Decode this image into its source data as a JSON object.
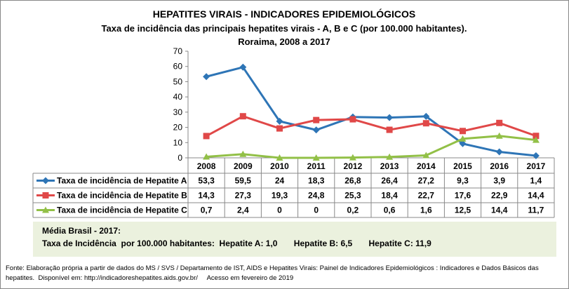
{
  "chart_data": {
    "type": "line",
    "title": "HEPATITES VIRAIS - INDICADORES EPIDEMIOLÓGICOS",
    "subtitle": "Taxa de incidência das principais hepatites virais - A, B e C (por 100.000 habitantes).",
    "subtitle2": "Roraima, 2008 a 2017",
    "categories": [
      "2008",
      "2009",
      "2010",
      "2011",
      "2012",
      "2013",
      "2014",
      "2015",
      "2016",
      "2017"
    ],
    "yticks": [
      "0",
      "10",
      "20",
      "30",
      "40",
      "50",
      "60",
      "70"
    ],
    "ylim": [
      0,
      70
    ],
    "grid": false,
    "legend": "data-table",
    "series": [
      {
        "name": "Taxa de incidência de Hepatite A",
        "color": "#2E75B6",
        "marker": "diamond",
        "values": [
          53.3,
          59.5,
          24,
          18.3,
          26.8,
          26.4,
          27.2,
          9.3,
          3.9,
          1.4
        ],
        "labels": [
          "53,3",
          "59,5",
          "24",
          "18,3",
          "26,8",
          "26,4",
          "27,2",
          "9,3",
          "3,9",
          "1,4"
        ]
      },
      {
        "name": "Taxa de incidência de Hepatite B",
        "color": "#E04848",
        "marker": "square",
        "values": [
          14.3,
          27.3,
          19.3,
          24.8,
          25.3,
          18.4,
          22.7,
          17.6,
          22.9,
          14.4
        ],
        "labels": [
          "14,3",
          "27,3",
          "19,3",
          "24,8",
          "25,3",
          "18,4",
          "22,7",
          "17,6",
          "22,9",
          "14,4"
        ]
      },
      {
        "name": "Taxa de incidência de Hepatite C",
        "color": "#92C047",
        "marker": "triangle",
        "values": [
          0.7,
          2.4,
          0,
          0,
          0.2,
          0.6,
          1.6,
          12.5,
          14.4,
          11.7
        ],
        "labels": [
          "0,7",
          "2,4",
          "0",
          "0",
          "0,2",
          "0,6",
          "1,6",
          "12,5",
          "14,4",
          "11,7"
        ]
      }
    ]
  },
  "note": {
    "line1": "Média Brasil - 2017:",
    "line2": "Taxa de Incidência  por 100.000 habitantes:  Hepatite A: 1,0       Hepatite B: 6,5       Hepatite C: 11,9",
    "background": "#EBF1DE"
  },
  "source": {
    "line1": "Fonte: Elaboração própria a partir de dados do MS / SVS / Departamento de IST, AIDS e Hepatites Virais:  Painel de Indicadores Epidemiológicos : Indicadores e Dados Básicos das",
    "line2": "hepatites.  Disponível em: http://indicadoreshepatites.aids.gov.br/     Acesso em fevereiro de 2019"
  }
}
